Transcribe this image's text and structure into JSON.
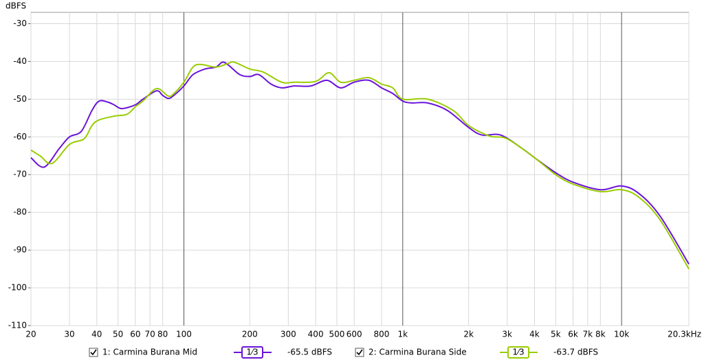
{
  "chart_data": {
    "type": "line",
    "y_label": "dBFS",
    "log_x": true,
    "grid": true,
    "xlim": [
      20,
      20300
    ],
    "ylim": [
      -110,
      -27
    ],
    "xticks": [
      20,
      30,
      40,
      50,
      60,
      70,
      80,
      100,
      200,
      300,
      400,
      500,
      600,
      800,
      {
        "value": 1000,
        "label": "1k"
      },
      {
        "value": 2000,
        "label": "2k"
      },
      {
        "value": 3000,
        "label": "3k"
      },
      {
        "value": 4000,
        "label": "4k"
      },
      {
        "value": 5000,
        "label": "5k"
      },
      {
        "value": 6000,
        "label": "6k"
      },
      {
        "value": 7000,
        "label": "7k"
      },
      {
        "value": 8000,
        "label": "8k"
      },
      {
        "value": 10000,
        "label": "10k"
      },
      {
        "value": 20300,
        "label": "20.3kHz"
      }
    ],
    "yticks": [
      -30,
      -40,
      -50,
      -60,
      -70,
      -80,
      -90,
      -100,
      -110
    ],
    "series": [
      {
        "name": "1: Carmina Burana Mid",
        "color": "#6a12d8",
        "smoothing": "1⁄3",
        "level": "-65.5 dBFS",
        "x": [
          20,
          23,
          27,
          30,
          34,
          38,
          41,
          45,
          48,
          52,
          60,
          65,
          75,
          80,
          85,
          90,
          100,
          110,
          125,
          140,
          150,
          160,
          180,
          200,
          220,
          250,
          280,
          320,
          380,
          450,
          520,
          600,
          700,
          800,
          900,
          1000,
          1100,
          1300,
          1600,
          2000,
          2300,
          2800,
          3500,
          4000,
          5000,
          6000,
          8000,
          10000,
          12000,
          15000,
          20300
        ],
        "values": [
          -65.5,
          -68,
          -63,
          -60,
          -58.5,
          -53,
          -50.5,
          -50.8,
          -51.5,
          -52.5,
          -51.5,
          -50,
          -47.8,
          -49,
          -49.8,
          -49,
          -46.5,
          -43.5,
          -42,
          -41.5,
          -40.2,
          -41,
          -43.5,
          -44,
          -43.5,
          -46,
          -47,
          -46.5,
          -46.5,
          -45,
          -47,
          -45.5,
          -45,
          -47,
          -48.5,
          -50.5,
          -51,
          -51,
          -53,
          -57.5,
          -59.5,
          -59.5,
          -63,
          -65.5,
          -69.5,
          -72,
          -74,
          -73,
          -75,
          -81,
          -93.7
        ]
      },
      {
        "name": "2: Carmina Burana Side",
        "color": "#99cc00",
        "smoothing": "1⁄3",
        "level": "-63.7 dBFS",
        "x": [
          20,
          22,
          25,
          30,
          35,
          38,
          41,
          48,
          55,
          60,
          65,
          75,
          85,
          90,
          100,
          110,
          120,
          140,
          160,
          170,
          200,
          230,
          280,
          320,
          400,
          460,
          520,
          600,
          700,
          800,
          900,
          1000,
          1300,
          1700,
          2000,
          2500,
          3000,
          4000,
          5000,
          6000,
          8000,
          10000,
          12000,
          15000,
          20300
        ],
        "values": [
          -63.5,
          -65,
          -67,
          -62,
          -60.5,
          -57,
          -55.5,
          -54.5,
          -54,
          -52,
          -50.5,
          -47.2,
          -49.2,
          -48.5,
          -45.5,
          -41.5,
          -40.8,
          -41.5,
          -40.5,
          -40.2,
          -42,
          -42.8,
          -45.5,
          -45.5,
          -45.3,
          -43,
          -45.5,
          -45,
          -44.3,
          -46,
          -47,
          -50,
          -50,
          -53,
          -57,
          -59.8,
          -60.5,
          -65.5,
          -70,
          -72.5,
          -74.5,
          -74,
          -76,
          -82,
          -95
        ]
      }
    ]
  }
}
